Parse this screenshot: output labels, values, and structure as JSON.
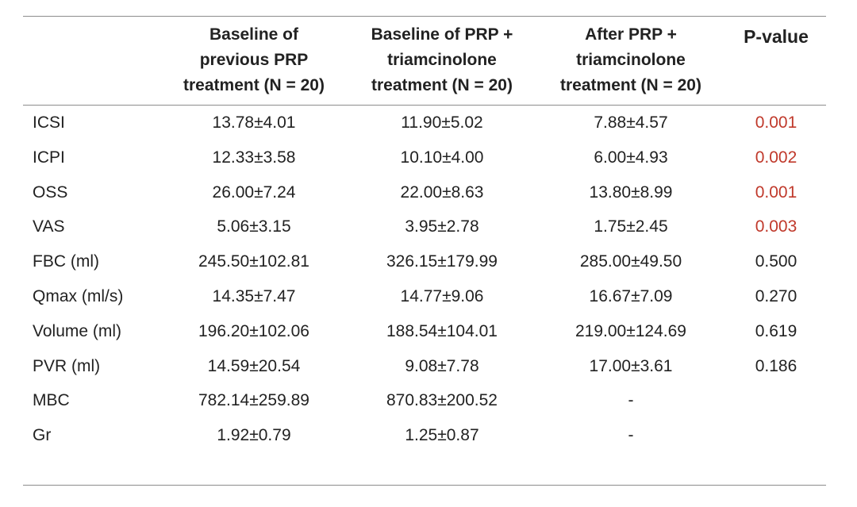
{
  "table": {
    "headers": [
      "Baseline of\nprevious PRP\ntreatment (N = 20)",
      "Baseline of PRP +\ntriamcinolone\ntreatment (N = 20)",
      "After  PRP +\ntriamcinolone\ntreatment (N = 20)",
      "P-value"
    ],
    "rows": [
      {
        "label": "ICSI",
        "values": [
          "13.78±4.01",
          "11.90±5.02",
          "7.88±4.57",
          "0.001"
        ],
        "significant": true
      },
      {
        "label": "ICPI",
        "values": [
          "12.33±3.58",
          "10.10±4.00",
          "6.00±4.93",
          "0.002"
        ],
        "significant": true
      },
      {
        "label": "OSS",
        "values": [
          "26.00±7.24",
          "22.00±8.63",
          "13.80±8.99",
          "0.001"
        ],
        "significant": true
      },
      {
        "label": "VAS",
        "values": [
          "5.06±3.15",
          "3.95±2.78",
          "1.75±2.45",
          "0.003"
        ],
        "significant": true
      },
      {
        "label": "FBC (ml)",
        "values": [
          "245.50±102.81",
          "326.15±179.99",
          "285.00±49.50",
          "0.500"
        ],
        "significant": false
      },
      {
        "label": "Qmax (ml/s)",
        "values": [
          "14.35±7.47",
          "14.77±9.06",
          "16.67±7.09",
          "0.270"
        ],
        "significant": false
      },
      {
        "label": "Volume (ml)",
        "values": [
          "196.20±102.06",
          "188.54±104.01",
          "219.00±124.69",
          "0.619"
        ],
        "significant": false
      },
      {
        "label": "PVR (ml)",
        "values": [
          "14.59±20.54",
          "9.08±7.78",
          "17.00±3.61",
          "0.186"
        ],
        "significant": false
      },
      {
        "label": "MBC",
        "values": [
          "782.14±259.89",
          "870.83±200.52",
          "-",
          ""
        ],
        "significant": false
      },
      {
        "label": "Gr",
        "values": [
          "1.92±0.79",
          "1.25±0.87",
          "-",
          ""
        ],
        "significant": false
      }
    ],
    "colors": {
      "text": "#222222",
      "significant_p": "#c0392b",
      "rule": "#8c8c8c"
    }
  }
}
